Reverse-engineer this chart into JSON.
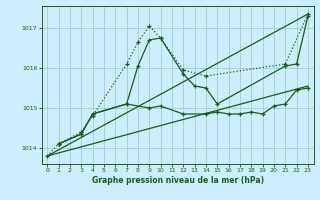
{
  "xlabel": "Graphe pression niveau de la mer (hPa)",
  "xlim": [
    -0.5,
    23.5
  ],
  "ylim": [
    1013.6,
    1017.55
  ],
  "yticks": [
    1014,
    1015,
    1016,
    1017
  ],
  "xticks": [
    0,
    1,
    2,
    3,
    4,
    5,
    6,
    7,
    8,
    9,
    10,
    11,
    12,
    13,
    14,
    15,
    16,
    17,
    18,
    19,
    20,
    21,
    22,
    23
  ],
  "bg_color": "#cceeff",
  "grid_color": "#99ccbb",
  "line_color": "#1a5c1a",
  "line_dotted": {
    "x": [
      0,
      1,
      3,
      4,
      7,
      8,
      9,
      10,
      12,
      14,
      21,
      23
    ],
    "y": [
      1013.8,
      1014.1,
      1014.4,
      1014.8,
      1016.1,
      1016.65,
      1017.05,
      1016.75,
      1015.95,
      1015.8,
      1016.1,
      1017.35
    ]
  },
  "line_solid_peak": {
    "x": [
      1,
      3,
      4,
      7,
      8,
      9,
      10,
      12,
      13,
      14,
      15,
      21,
      22,
      23
    ],
    "y": [
      1014.1,
      1014.35,
      1014.85,
      1015.1,
      1016.05,
      1016.7,
      1016.75,
      1015.85,
      1015.55,
      1015.5,
      1015.1,
      1016.05,
      1016.1,
      1017.3
    ]
  },
  "line_straight1": {
    "x": [
      0,
      23
    ],
    "y": [
      1013.8,
      1017.35
    ]
  },
  "line_straight2": {
    "x": [
      0,
      23
    ],
    "y": [
      1013.8,
      1015.55
    ]
  },
  "line_flat": {
    "x": [
      1,
      3,
      4,
      7,
      9,
      10,
      12,
      14,
      15,
      16,
      17,
      18,
      19,
      20,
      21,
      22,
      23
    ],
    "y": [
      1014.1,
      1014.35,
      1014.85,
      1015.1,
      1015.0,
      1015.05,
      1014.85,
      1014.85,
      1014.9,
      1014.85,
      1014.85,
      1014.9,
      1014.85,
      1015.05,
      1015.1,
      1015.45,
      1015.5
    ]
  }
}
